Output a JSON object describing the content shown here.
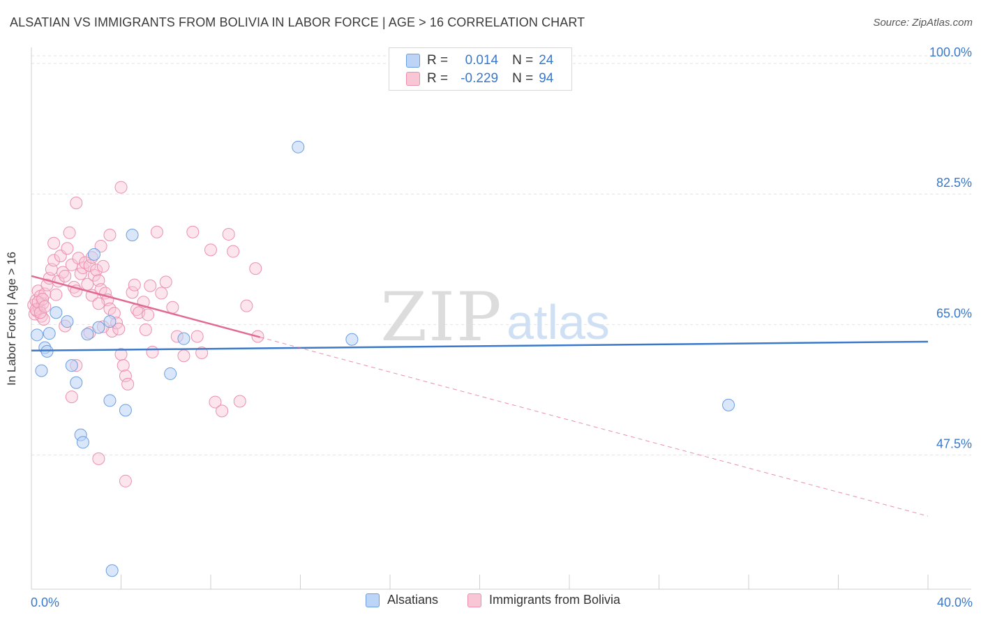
{
  "title": "ALSATIAN VS IMMIGRANTS FROM BOLIVIA IN LABOR FORCE | AGE > 16 CORRELATION CHART",
  "source": "Source: ZipAtlas.com",
  "watermark": {
    "zip": "ZIP",
    "atlas": "atlas"
  },
  "stats": [
    {
      "r_label": "R =",
      "r_value": "0.014",
      "n_label": "N =",
      "n_value": "24",
      "fill": "#bcd4f5",
      "stroke": "#6a9de0"
    },
    {
      "r_label": "R =",
      "r_value": "-0.229",
      "n_label": "N =",
      "n_value": "94",
      "fill": "#f9c6d6",
      "stroke": "#ec8fae"
    }
  ],
  "legend": [
    {
      "label": "Alsatians",
      "fill": "#bcd4f5",
      "stroke": "#6a9de0"
    },
    {
      "label": "Immigrants from Bolivia",
      "fill": "#f9c6d6",
      "stroke": "#ec8fae"
    }
  ],
  "chart_data": {
    "type": "scatter",
    "ylabel": "In Labor Force | Age > 16",
    "xlim": [
      0,
      40
    ],
    "ylim": [
      29.5,
      101.5
    ],
    "x_tick_labels": [
      {
        "value": 0,
        "label": "0.0%"
      },
      {
        "value": 40,
        "label": "40.0%"
      }
    ],
    "y_tick_labels": [
      {
        "value": 100,
        "label": "100.0%"
      },
      {
        "value": 82.5,
        "label": "82.5%"
      },
      {
        "value": 65,
        "label": "65.0%"
      },
      {
        "value": 47.5,
        "label": "47.5%"
      }
    ],
    "x_minor_ticks": [
      0,
      4,
      8,
      12,
      16,
      20,
      24,
      28,
      32,
      36,
      40
    ],
    "grid": true,
    "colors": {
      "alsatians": "#3a78c9",
      "bolivia": "#e06a94",
      "axis_label": "#3a78c9"
    },
    "series": [
      {
        "name": "Alsatians",
        "color": "#3a78c9",
        "trend": {
          "x": [
            0,
            40
          ],
          "y": [
            61.5,
            62.7
          ],
          "dashed_from": null
        },
        "points": [
          [
            0.25,
            63.6
          ],
          [
            0.45,
            58.8
          ],
          [
            0.6,
            61.9
          ],
          [
            0.7,
            61.4
          ],
          [
            0.8,
            63.8
          ],
          [
            1.1,
            66.6
          ],
          [
            1.6,
            65.4
          ],
          [
            1.8,
            59.5
          ],
          [
            2.0,
            57.2
          ],
          [
            2.2,
            50.2
          ],
          [
            2.3,
            49.2
          ],
          [
            2.5,
            63.7
          ],
          [
            2.8,
            74.4
          ],
          [
            3.0,
            64.6
          ],
          [
            3.5,
            54.8
          ],
          [
            3.6,
            32.0
          ],
          [
            3.5,
            65.4
          ],
          [
            4.2,
            53.5
          ],
          [
            4.5,
            77.0
          ],
          [
            6.2,
            58.4
          ],
          [
            6.8,
            63.1
          ],
          [
            11.9,
            88.8
          ],
          [
            14.3,
            63.0
          ],
          [
            31.1,
            54.2
          ]
        ]
      },
      {
        "name": "Immigrants from Bolivia",
        "color": "#e06a94",
        "trend": {
          "x": [
            0,
            10.2,
            40
          ],
          "y": [
            71.5,
            63.3,
            39.3
          ],
          "dashed_from": 10.2
        },
        "points": [
          [
            0.1,
            67.6
          ],
          [
            0.15,
            66.4
          ],
          [
            0.2,
            68.2
          ],
          [
            0.25,
            66.8
          ],
          [
            0.3,
            69.5
          ],
          [
            0.35,
            67.2
          ],
          [
            0.4,
            68.8
          ],
          [
            0.45,
            66.1
          ],
          [
            0.5,
            67.8
          ],
          [
            0.55,
            65.7
          ],
          [
            0.6,
            69.1
          ],
          [
            0.2,
            67.0
          ],
          [
            0.3,
            68.0
          ],
          [
            0.4,
            66.6
          ],
          [
            0.5,
            68.4
          ],
          [
            0.6,
            67.4
          ],
          [
            0.7,
            70.3
          ],
          [
            0.8,
            71.2
          ],
          [
            0.9,
            72.4
          ],
          [
            1.0,
            73.6
          ],
          [
            1.0,
            75.9
          ],
          [
            1.1,
            69.0
          ],
          [
            1.2,
            70.8
          ],
          [
            1.3,
            74.2
          ],
          [
            1.4,
            72.0
          ],
          [
            1.5,
            71.5
          ],
          [
            1.6,
            75.2
          ],
          [
            1.7,
            77.3
          ],
          [
            1.8,
            73.0
          ],
          [
            1.9,
            70.0
          ],
          [
            2.0,
            69.5
          ],
          [
            2.1,
            73.9
          ],
          [
            2.2,
            71.8
          ],
          [
            2.3,
            72.6
          ],
          [
            2.4,
            73.3
          ],
          [
            2.5,
            70.4
          ],
          [
            2.6,
            72.9
          ],
          [
            2.7,
            74.0
          ],
          [
            2.8,
            71.6
          ],
          [
            2.9,
            72.3
          ],
          [
            3.0,
            70.9
          ],
          [
            3.1,
            69.7
          ],
          [
            3.2,
            72.8
          ],
          [
            3.3,
            69.2
          ],
          [
            3.4,
            68.3
          ],
          [
            3.5,
            67.1
          ],
          [
            3.6,
            64.1
          ],
          [
            3.7,
            66.5
          ],
          [
            3.8,
            65.2
          ],
          [
            3.9,
            64.4
          ],
          [
            4.0,
            61.0
          ],
          [
            4.1,
            59.5
          ],
          [
            4.2,
            58.1
          ],
          [
            4.3,
            57.0
          ],
          [
            4.5,
            69.3
          ],
          [
            4.6,
            70.3
          ],
          [
            4.7,
            67.0
          ],
          [
            4.8,
            66.6
          ],
          [
            5.0,
            68.0
          ],
          [
            5.1,
            64.3
          ],
          [
            5.2,
            66.3
          ],
          [
            5.3,
            70.2
          ],
          [
            5.4,
            61.3
          ],
          [
            5.6,
            77.4
          ],
          [
            5.8,
            69.2
          ],
          [
            6.0,
            70.7
          ],
          [
            6.3,
            67.3
          ],
          [
            6.5,
            63.4
          ],
          [
            6.8,
            60.8
          ],
          [
            7.2,
            77.4
          ],
          [
            7.4,
            63.4
          ],
          [
            7.6,
            61.2
          ],
          [
            8.0,
            75.0
          ],
          [
            8.2,
            54.6
          ],
          [
            8.5,
            53.4
          ],
          [
            8.8,
            77.1
          ],
          [
            9.0,
            74.8
          ],
          [
            9.3,
            54.7
          ],
          [
            9.6,
            67.5
          ],
          [
            10.0,
            72.5
          ],
          [
            10.1,
            63.4
          ],
          [
            1.5,
            64.8
          ],
          [
            1.8,
            55.3
          ],
          [
            2.0,
            59.5
          ],
          [
            2.6,
            63.9
          ],
          [
            2.7,
            68.9
          ],
          [
            3.1,
            75.5
          ],
          [
            3.5,
            77.0
          ],
          [
            4.0,
            83.4
          ],
          [
            3.2,
            64.7
          ],
          [
            3.0,
            67.8
          ],
          [
            2.0,
            81.3
          ],
          [
            3.0,
            47.0
          ],
          [
            4.2,
            44.0
          ]
        ]
      }
    ]
  }
}
